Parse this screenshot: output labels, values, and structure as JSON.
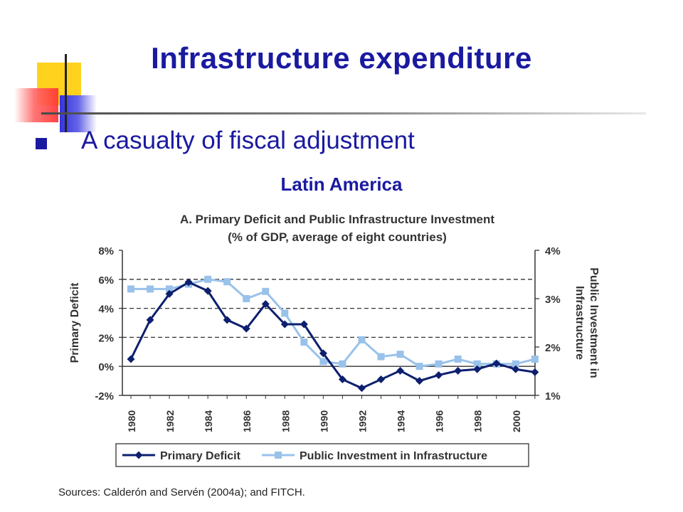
{
  "slide": {
    "title": "Infrastructure expenditure",
    "bullet": "A casualty of fiscal adjustment",
    "region": "Latin America",
    "source": "Sources: Calderón and Servén (2004a); and FITCH."
  },
  "chart_data": {
    "type": "line",
    "title": "A. Primary Deficit and Public Infrastructure Investment",
    "subtitle": "(% of GDP, average of eight countries)",
    "x": [
      1980,
      1981,
      1982,
      1983,
      1984,
      1985,
      1986,
      1987,
      1988,
      1989,
      1990,
      1991,
      1992,
      1993,
      1994,
      1995,
      1996,
      1997,
      1998,
      1999,
      2000,
      2001
    ],
    "x_tick_labels": [
      "1980",
      "1982",
      "1984",
      "1986",
      "1988",
      "1990",
      "1992",
      "1994",
      "1996",
      "1998",
      "2000"
    ],
    "ylabel": "Primary Deficit",
    "y2label": "Public Investment in Infrastructure",
    "ylim": [
      -2,
      8
    ],
    "y2lim": [
      1,
      4
    ],
    "y_tick_labels": [
      "8%",
      "6%",
      "4%",
      "2%",
      "0%",
      "-2%"
    ],
    "y2_tick_labels": [
      "4%",
      "3%",
      "2%",
      "1%"
    ],
    "gridlines_dashed_y": [
      6,
      4,
      2
    ],
    "series": [
      {
        "name": "Primary Deficit",
        "axis": "left",
        "color": "#0d1f6e",
        "marker": "diamond",
        "values": [
          0.5,
          3.2,
          5.0,
          5.8,
          5.2,
          3.2,
          2.6,
          4.3,
          2.9,
          2.9,
          0.9,
          -0.9,
          -1.5,
          -0.9,
          -0.3,
          -1.0,
          -0.6,
          -0.3,
          -0.2,
          0.2,
          -0.2,
          -0.4
        ]
      },
      {
        "name": "Public Investment in Infrastructure",
        "axis": "right",
        "color": "#99c2ea",
        "marker": "square",
        "values": [
          3.2,
          3.2,
          3.2,
          3.3,
          3.4,
          3.35,
          3.0,
          3.15,
          2.7,
          2.1,
          1.7,
          1.65,
          2.15,
          1.8,
          1.85,
          1.6,
          1.65,
          1.75,
          1.65,
          1.65,
          1.65,
          1.75
        ]
      }
    ],
    "legend_position": "bottom"
  }
}
